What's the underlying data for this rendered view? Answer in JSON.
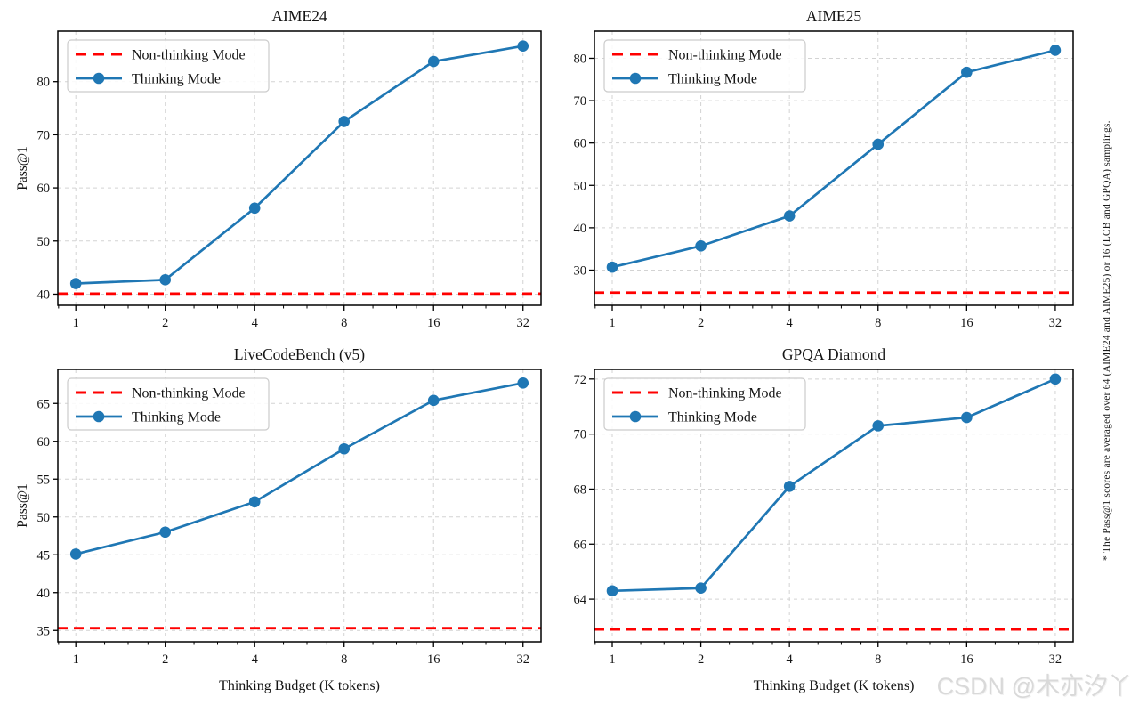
{
  "page": {
    "background": "#ffffff"
  },
  "colors": {
    "thinking": "#1f77b4",
    "non_thinking": "#ff0000",
    "grid": "#d3d3d3",
    "spine": "#000000",
    "text": "#141414",
    "legend_border": "#cccccc",
    "watermark": "#d9d9d9"
  },
  "legend": {
    "non_thinking_label": "Non-thinking Mode",
    "thinking_label": "Thinking Mode",
    "position": "upper left"
  },
  "axis": {
    "xlabel": "Thinking Budget (K tokens)",
    "ylabel": "Pass@1",
    "x_ticks": [
      1,
      2,
      4,
      8,
      16,
      32
    ],
    "x_scale": "log2"
  },
  "side_note": "* The Pass@1 scores are averaged over 64 (AIME24 and AIME25) or 16 (LCB and GPQA) samplings.",
  "watermark": "CSDN @木亦汐丫",
  "chart_data": [
    {
      "type": "line",
      "title": "AIME24",
      "xlabel": "",
      "ylabel": "Pass@1",
      "x": [
        1,
        2,
        4,
        8,
        16,
        32
      ],
      "series": [
        {
          "name": "Non-thinking Mode",
          "style": "dashed-hline",
          "value": 40.1
        },
        {
          "name": "Thinking Mode",
          "style": "solid-markers",
          "values": [
            42.0,
            42.7,
            56.2,
            72.5,
            83.8,
            86.7
          ]
        }
      ],
      "yticks": [
        40,
        50,
        60,
        70,
        80
      ],
      "ylim": [
        37.9,
        89.5
      ],
      "xlim": [
        0.87,
        36.8
      ],
      "grid": true,
      "legend_position": "upper left"
    },
    {
      "type": "line",
      "title": "AIME25",
      "xlabel": "",
      "ylabel": "",
      "x": [
        1,
        2,
        4,
        8,
        16,
        32
      ],
      "series": [
        {
          "name": "Non-thinking Mode",
          "style": "dashed-hline",
          "value": 24.7
        },
        {
          "name": "Thinking Mode",
          "style": "solid-markers",
          "values": [
            30.7,
            35.7,
            42.8,
            59.7,
            76.7,
            81.9
          ]
        }
      ],
      "yticks": [
        30,
        40,
        50,
        60,
        70,
        80
      ],
      "ylim": [
        21.7,
        86.4
      ],
      "xlim": [
        0.87,
        36.8
      ],
      "grid": true,
      "legend_position": "upper left"
    },
    {
      "type": "line",
      "title": "LiveCodeBench (v5)",
      "xlabel": "Thinking Budget (K tokens)",
      "ylabel": "Pass@1",
      "x": [
        1,
        2,
        4,
        8,
        16,
        32
      ],
      "series": [
        {
          "name": "Non-thinking Mode",
          "style": "dashed-hline",
          "value": 35.3
        },
        {
          "name": "Thinking Mode",
          "style": "solid-markers",
          "values": [
            45.1,
            48.0,
            52.0,
            59.0,
            65.4,
            67.7
          ]
        }
      ],
      "yticks": [
        35,
        40,
        45,
        50,
        55,
        60,
        65
      ],
      "ylim": [
        33.5,
        69.5
      ],
      "xlim": [
        0.87,
        36.8
      ],
      "grid": true,
      "legend_position": "upper left"
    },
    {
      "type": "line",
      "title": "GPQA Diamond",
      "xlabel": "Thinking Budget (K tokens)",
      "ylabel": "",
      "x": [
        1,
        2,
        4,
        8,
        16,
        32
      ],
      "series": [
        {
          "name": "Non-thinking Mode",
          "style": "dashed-hline",
          "value": 62.9
        },
        {
          "name": "Thinking Mode",
          "style": "solid-markers",
          "values": [
            64.3,
            64.4,
            68.1,
            70.3,
            70.6,
            72.0
          ]
        }
      ],
      "yticks": [
        64,
        66,
        68,
        70,
        72
      ],
      "ylim": [
        62.45,
        72.35
      ],
      "xlim": [
        0.87,
        36.8
      ],
      "grid": true,
      "legend_position": "upper left"
    }
  ]
}
